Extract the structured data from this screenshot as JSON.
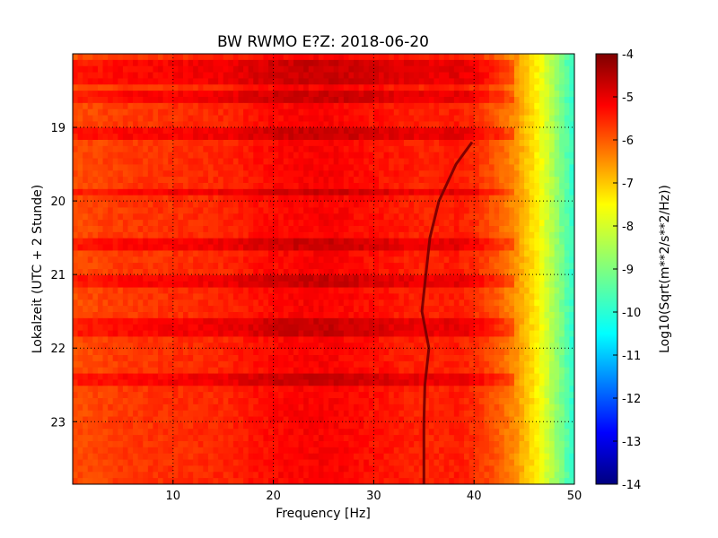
{
  "chart_data": {
    "type": "heatmap",
    "title": "BW RWMO E?Z: 2018-06-20",
    "xlabel": "Frequency [Hz]",
    "ylabel": "Lokalzeit (UTC + 2 Stunde)",
    "xlim": [
      0,
      50
    ],
    "ylim": [
      18.0,
      23.85
    ],
    "y_inverted": true,
    "x_ticks": [
      "10",
      "20",
      "30",
      "40",
      "50"
    ],
    "y_ticks": [
      "19",
      "20",
      "21",
      "22",
      "23"
    ],
    "grid": true,
    "colormap": "jet",
    "colorbar": {
      "label": "Log10(Sqrt(m**2/s**2/Hz))",
      "range": [
        -14,
        -4
      ],
      "ticks": [
        "-4",
        "-5",
        "-6",
        "-7",
        "-8",
        "-9",
        "-10",
        "-11",
        "-12",
        "-13",
        "-14"
      ]
    },
    "spectral_profile": {
      "description_points_hz": [
        0,
        5,
        10,
        15,
        20,
        25,
        30,
        35,
        38,
        40,
        42,
        44,
        46,
        48,
        50
      ],
      "log_amplitude": [
        -6.0,
        -5.8,
        -5.7,
        -5.6,
        -5.3,
        -5.2,
        -5.4,
        -5.6,
        -5.5,
        -5.7,
        -6.1,
        -6.7,
        -7.6,
        -8.8,
        -10.0
      ]
    },
    "narrowband_line": {
      "points": [
        {
          "t": 19.2,
          "f": 39.8
        },
        {
          "t": 19.5,
          "f": 38.2
        },
        {
          "t": 20.0,
          "f": 36.5
        },
        {
          "t": 20.5,
          "f": 35.6
        },
        {
          "t": 21.0,
          "f": 35.2
        },
        {
          "t": 21.5,
          "f": 34.8
        },
        {
          "t": 22.0,
          "f": 35.5
        },
        {
          "t": 22.5,
          "f": 35.1
        },
        {
          "t": 23.0,
          "f": 35.0
        },
        {
          "t": 23.85,
          "f": 35.0
        }
      ]
    },
    "broadband_bursts_time": [
      18.15,
      18.3,
      18.5,
      18.55,
      18.6,
      19.05,
      19.85,
      20.5,
      20.55,
      21.05,
      21.65,
      21.75,
      22.4
    ]
  }
}
